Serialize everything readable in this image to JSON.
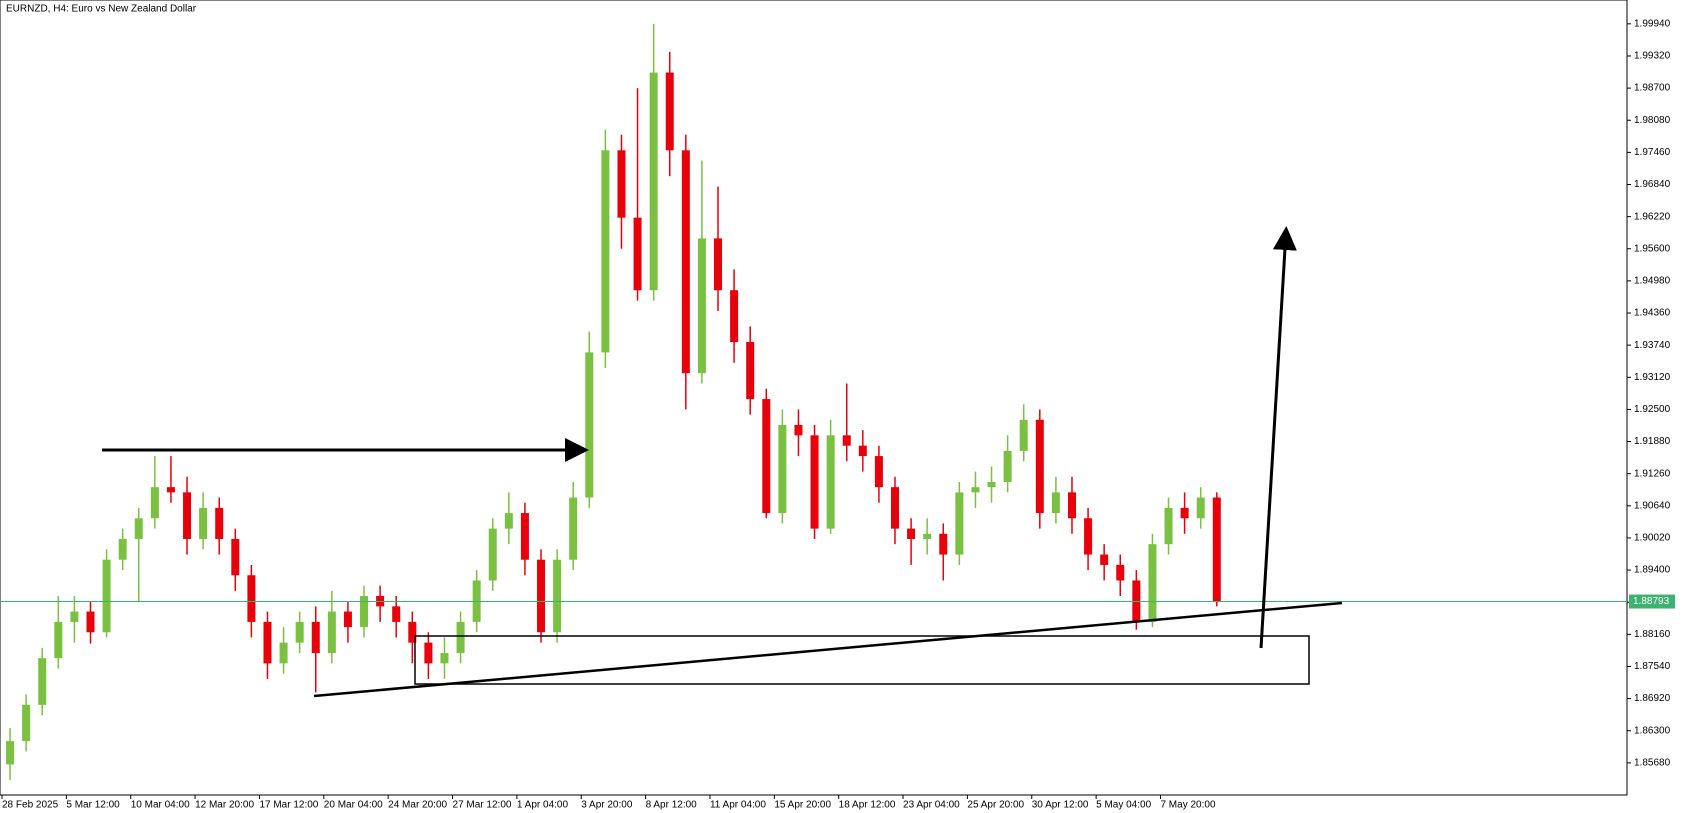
{
  "chart_data": {
    "type": "candlestick",
    "title": "EURNZD, H4:  Euro vs New Zealand Dollar",
    "x": [
      "28 Feb 2025",
      null,
      null,
      null,
      "5 Mar 12:00",
      null,
      null,
      null,
      "10 Mar 04:00",
      null,
      null,
      null,
      "12 Mar 20:00",
      null,
      null,
      null,
      "17 Mar 12:00",
      null,
      null,
      null,
      "20 Mar 04:00",
      null,
      null,
      null,
      "24 Mar 20:00",
      null,
      null,
      null,
      "27 Mar 12:00",
      null,
      null,
      null,
      "1 Apr 04:00",
      null,
      null,
      null,
      "3 Apr 20:00",
      null,
      null,
      null,
      "8 Apr 12:00",
      null,
      null,
      null,
      "11 Apr 04:00",
      null,
      null,
      null,
      "15 Apr 20:00",
      null,
      null,
      null,
      "18 Apr 12:00",
      null,
      null,
      null,
      "23 Apr 04:00",
      null,
      null,
      null,
      "25 Apr 20:00",
      null,
      null,
      null,
      "30 Apr 12:00",
      null,
      null,
      null,
      "5 May 04:00",
      null,
      null,
      null,
      "7 May 20:00",
      null,
      null,
      null
    ],
    "open": [
      1.8565,
      1.861,
      1.868,
      1.877,
      1.884,
      1.886,
      1.882,
      1.896,
      1.9,
      1.904,
      1.91,
      1.909,
      1.9,
      1.906,
      1.9,
      1.893,
      1.884,
      1.876,
      1.88,
      1.884,
      1.878,
      1.886,
      1.883,
      1.889,
      1.887,
      1.884,
      1.88,
      1.876,
      1.878,
      1.884,
      1.892,
      1.902,
      1.905,
      1.896,
      1.882,
      1.896,
      1.908,
      1.936,
      1.975,
      1.962,
      1.948,
      1.99,
      1.975,
      1.932,
      1.958,
      1.948,
      1.938,
      1.927,
      1.905,
      1.922,
      1.92,
      1.902,
      1.92,
      1.918,
      1.916,
      1.91,
      1.902,
      1.9,
      1.901,
      1.897,
      1.909,
      1.91,
      1.911,
      1.917,
      1.923,
      1.905,
      1.909,
      1.904,
      1.897,
      1.895,
      1.892,
      1.884,
      1.899,
      1.906,
      1.904,
      1.908
    ],
    "high": [
      1.8635,
      1.87,
      1.879,
      1.889,
      1.889,
      1.888,
      1.898,
      1.902,
      1.906,
      1.916,
      1.916,
      1.912,
      1.909,
      1.908,
      1.902,
      1.895,
      1.886,
      1.883,
      1.886,
      1.887,
      1.89,
      1.888,
      1.891,
      1.891,
      1.889,
      1.886,
      1.882,
      1.881,
      1.886,
      1.894,
      1.904,
      1.909,
      1.907,
      1.898,
      1.898,
      1.911,
      1.94,
      1.979,
      1.978,
      1.987,
      1.9994,
      1.994,
      1.978,
      1.973,
      1.968,
      1.952,
      1.941,
      1.929,
      1.925,
      1.925,
      1.922,
      1.923,
      1.93,
      1.921,
      1.918,
      1.912,
      1.904,
      1.904,
      1.903,
      1.911,
      1.913,
      1.914,
      1.92,
      1.926,
      1.925,
      1.912,
      1.912,
      1.906,
      1.899,
      1.897,
      1.894,
      1.901,
      1.908,
      1.909,
      1.91,
      1.909
    ],
    "low": [
      1.8535,
      1.859,
      1.866,
      1.875,
      1.88,
      1.8798,
      1.881,
      1.894,
      1.888,
      1.902,
      1.907,
      1.897,
      1.898,
      1.897,
      1.89,
      1.881,
      1.873,
      1.874,
      1.878,
      1.8704,
      1.876,
      1.88,
      1.881,
      1.884,
      1.881,
      1.876,
      1.873,
      1.873,
      1.876,
      1.882,
      1.89,
      1.899,
      1.893,
      1.88,
      1.88,
      1.894,
      1.906,
      1.933,
      1.956,
      1.946,
      1.946,
      1.97,
      1.925,
      1.93,
      1.944,
      1.934,
      1.924,
      1.904,
      1.903,
      1.916,
      1.9,
      1.901,
      1.915,
      1.913,
      1.907,
      1.899,
      1.895,
      1.897,
      1.892,
      1.895,
      1.906,
      1.907,
      1.909,
      1.915,
      1.902,
      1.903,
      1.901,
      1.894,
      1.892,
      1.889,
      1.8825,
      1.883,
      1.897,
      1.901,
      1.902,
      1.887
    ],
    "close": [
      1.861,
      1.868,
      1.877,
      1.884,
      1.886,
      1.882,
      1.896,
      1.9,
      1.904,
      1.91,
      1.909,
      1.9,
      1.906,
      1.9,
      1.893,
      1.884,
      1.876,
      1.88,
      1.884,
      1.878,
      1.886,
      1.883,
      1.889,
      1.887,
      1.884,
      1.88,
      1.876,
      1.878,
      1.884,
      1.892,
      1.902,
      1.905,
      1.896,
      1.882,
      1.896,
      1.908,
      1.936,
      1.975,
      1.962,
      1.948,
      1.99,
      1.975,
      1.932,
      1.958,
      1.948,
      1.938,
      1.927,
      1.905,
      1.922,
      1.92,
      1.902,
      1.92,
      1.918,
      1.916,
      1.91,
      1.902,
      1.9,
      1.901,
      1.897,
      1.909,
      1.91,
      1.911,
      1.917,
      1.923,
      1.905,
      1.909,
      1.904,
      1.897,
      1.895,
      1.892,
      1.884,
      1.899,
      1.906,
      1.904,
      1.908,
      1.88793
    ],
    "up_color": "#7ac142",
    "down_color": "#e8000b",
    "current_price": 1.88793,
    "current_price_color": "#3cb371",
    "ylim": [
      1.8506,
      2.004
    ],
    "yticks": [
      {
        "value": 1.8568,
        "label": "1.85680"
      },
      {
        "value": 1.863,
        "label": "1.86300"
      },
      {
        "value": 1.8692,
        "label": "1.86920"
      },
      {
        "value": 1.8754,
        "label": "1.87540"
      },
      {
        "value": 1.8816,
        "label": "1.88160"
      },
      {
        "value": 1.8878,
        "label": "1.88780"
      },
      {
        "value": 1.894,
        "label": "1.89400"
      },
      {
        "value": 1.9002,
        "label": "1.90020"
      },
      {
        "value": 1.9064,
        "label": "1.90640"
      },
      {
        "value": 1.9126,
        "label": "1.91260"
      },
      {
        "value": 1.9188,
        "label": "1.91880"
      },
      {
        "value": 1.925,
        "label": "1.92500"
      },
      {
        "value": 1.9312,
        "label": "1.93120"
      },
      {
        "value": 1.9374,
        "label": "1.93740"
      },
      {
        "value": 1.9436,
        "label": "1.94360"
      },
      {
        "value": 1.9498,
        "label": "1.94980"
      },
      {
        "value": 1.956,
        "label": "1.95600"
      },
      {
        "value": 1.9622,
        "label": "1.96220"
      },
      {
        "value": 1.9684,
        "label": "1.96840"
      },
      {
        "value": 1.9746,
        "label": "1.97460"
      },
      {
        "value": 1.9808,
        "label": "1.98080"
      },
      {
        "value": 1.987,
        "label": "1.98700"
      },
      {
        "value": 1.9932,
        "label": "1.99320"
      },
      {
        "value": 1.9994,
        "label": "1.99940"
      }
    ]
  }
}
